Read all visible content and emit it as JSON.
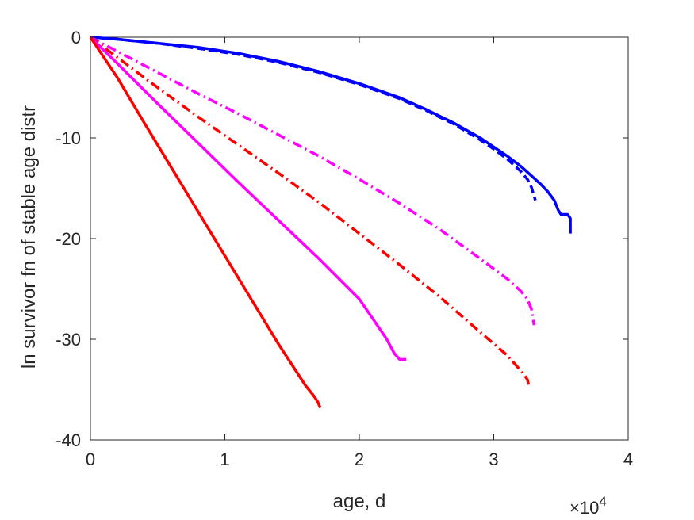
{
  "chart_data": {
    "type": "line",
    "xlabel": "age, d",
    "ylabel": "ln survivor fn of stable age distr",
    "x_exponent_label": "×10",
    "x_exponent_power": "4",
    "xlim": [
      0,
      40000
    ],
    "ylim": [
      -40,
      0
    ],
    "x_ticks": [
      0,
      10000,
      20000,
      30000,
      40000
    ],
    "x_tick_labels": [
      "0",
      "1",
      "2",
      "3",
      "4"
    ],
    "y_ticks": [
      0,
      -10,
      -20,
      -30,
      -40
    ],
    "y_tick_labels": [
      "0",
      "-10",
      "-20",
      "-30",
      "-40"
    ],
    "grid": false,
    "series": [
      {
        "color": "#0000ff",
        "dash": "solid",
        "x": [
          0,
          2000,
          5000,
          8000,
          11000,
          14000,
          17000,
          20000,
          23000,
          25000,
          27000,
          29000,
          30000,
          31000,
          32000,
          32500,
          33000,
          33500,
          34000,
          34500,
          34800,
          35000,
          35500,
          35700,
          35700
        ],
        "y": [
          0,
          -0.2,
          -0.6,
          -1.0,
          -1.6,
          -2.4,
          -3.4,
          -4.6,
          -6.0,
          -7.2,
          -8.5,
          -10.0,
          -10.9,
          -11.8,
          -12.8,
          -13.4,
          -14.0,
          -14.6,
          -15.3,
          -16.2,
          -17.2,
          -17.6,
          -17.6,
          -18.0,
          -19.5
        ]
      },
      {
        "color": "#0000ff",
        "dash": "dashed",
        "x": [
          0,
          2000,
          5000,
          8000,
          11000,
          14000,
          17000,
          20000,
          23000,
          25000,
          27000,
          29000,
          30000,
          31000,
          32000,
          32500,
          32800,
          33100
        ],
        "y": [
          0,
          -0.2,
          -0.6,
          -1.1,
          -1.7,
          -2.5,
          -3.5,
          -4.7,
          -6.1,
          -7.3,
          -8.6,
          -10.2,
          -11.1,
          -12.1,
          -13.3,
          -14.1,
          -14.9,
          -16.2
        ]
      },
      {
        "color": "#ff00ff",
        "dash": "dashdot",
        "x": [
          0,
          2000,
          5000,
          8000,
          11000,
          14000,
          17000,
          20000,
          23000,
          26000,
          29000,
          31000,
          32000,
          32500,
          32800,
          33000
        ],
        "y": [
          0,
          -1.4,
          -3.5,
          -5.6,
          -7.6,
          -9.7,
          -11.8,
          -14.1,
          -16.5,
          -19.1,
          -22.0,
          -24.0,
          -25.2,
          -26.0,
          -27.0,
          -28.6
        ]
      },
      {
        "color": "#ff0000",
        "dash": "dashdot",
        "x": [
          0,
          2000,
          5000,
          8000,
          11000,
          14000,
          17000,
          20000,
          23000,
          26000,
          29000,
          31000,
          32000,
          32300,
          32500,
          32600
        ],
        "y": [
          0,
          -2.0,
          -5.0,
          -7.9,
          -10.7,
          -13.5,
          -16.4,
          -19.5,
          -22.6,
          -25.8,
          -29.3,
          -31.6,
          -33.1,
          -33.6,
          -34.0,
          -34.6
        ]
      },
      {
        "color": "#ff00ff",
        "dash": "solid",
        "x": [
          0,
          2000,
          5000,
          8000,
          11000,
          14000,
          17000,
          20000,
          22000,
          22600,
          23000,
          23500
        ],
        "y": [
          0,
          -2.6,
          -6.6,
          -10.5,
          -14.4,
          -18.2,
          -22.0,
          -26.0,
          -29.9,
          -31.4,
          -32.0,
          -32.0
        ]
      },
      {
        "color": "#ff0000",
        "dash": "solid",
        "x": [
          0,
          2000,
          4000,
          6000,
          8000,
          10000,
          12000,
          14000,
          16000,
          16600,
          16900,
          17100
        ],
        "y": [
          0,
          -4.0,
          -8.5,
          -12.9,
          -17.3,
          -21.7,
          -26.1,
          -30.5,
          -34.6,
          -35.6,
          -36.2,
          -36.8
        ]
      }
    ]
  }
}
